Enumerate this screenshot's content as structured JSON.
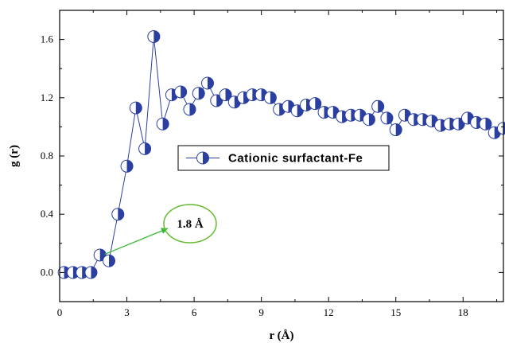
{
  "chart_data": {
    "type": "line",
    "xlabel": "r (Å)",
    "ylabel": "g (r)",
    "xlim": [
      0,
      19.8
    ],
    "ylim": [
      -0.2,
      1.8
    ],
    "xticks": [
      0,
      3,
      6,
      9,
      12,
      15,
      18
    ],
    "yticks": [
      0.0,
      0.4,
      0.8,
      1.2,
      1.6
    ],
    "xtick_labels": [
      "0",
      "3",
      "6",
      "9",
      "12",
      "15",
      "18"
    ],
    "ytick_labels": [
      "0.0",
      "0.4",
      "0.8",
      "1.2",
      "1.6"
    ],
    "grid": false,
    "legend_placement": "center-right",
    "series": [
      {
        "name": "Cationic surfactant-Fe",
        "color": "#2b3fa0",
        "marker": "half-filled-circle",
        "x": [
          0.2,
          0.6,
          1.0,
          1.4,
          1.8,
          2.2,
          2.6,
          3.0,
          3.4,
          3.8,
          4.2,
          4.6,
          5.0,
          5.4,
          5.8,
          6.2,
          6.6,
          7.0,
          7.4,
          7.8,
          8.2,
          8.6,
          9.0,
          9.4,
          9.8,
          10.2,
          10.6,
          11.0,
          11.4,
          11.8,
          12.2,
          12.6,
          13.0,
          13.4,
          13.8,
          14.2,
          14.6,
          15.0,
          15.4,
          15.8,
          16.2,
          16.6,
          17.0,
          17.4,
          17.8,
          18.2,
          18.6,
          19.0,
          19.4,
          19.8
        ],
        "y": [
          0.0,
          0.0,
          0.0,
          0.0,
          0.12,
          0.08,
          0.4,
          0.73,
          1.13,
          0.85,
          1.62,
          1.02,
          1.22,
          1.24,
          1.12,
          1.23,
          1.3,
          1.18,
          1.22,
          1.17,
          1.2,
          1.22,
          1.22,
          1.2,
          1.12,
          1.14,
          1.11,
          1.15,
          1.16,
          1.1,
          1.1,
          1.07,
          1.08,
          1.08,
          1.05,
          1.14,
          1.06,
          0.98,
          1.08,
          1.05,
          1.05,
          1.04,
          1.01,
          1.02,
          1.02,
          1.06,
          1.03,
          1.02,
          0.96,
          0.99
        ]
      }
    ],
    "annotations": [
      {
        "text": "1.8 Å",
        "point_x": 1.8,
        "point_y": 0.12,
        "arrow_color": "#33bb33",
        "ellipse_color": "#66bb33"
      }
    ]
  }
}
